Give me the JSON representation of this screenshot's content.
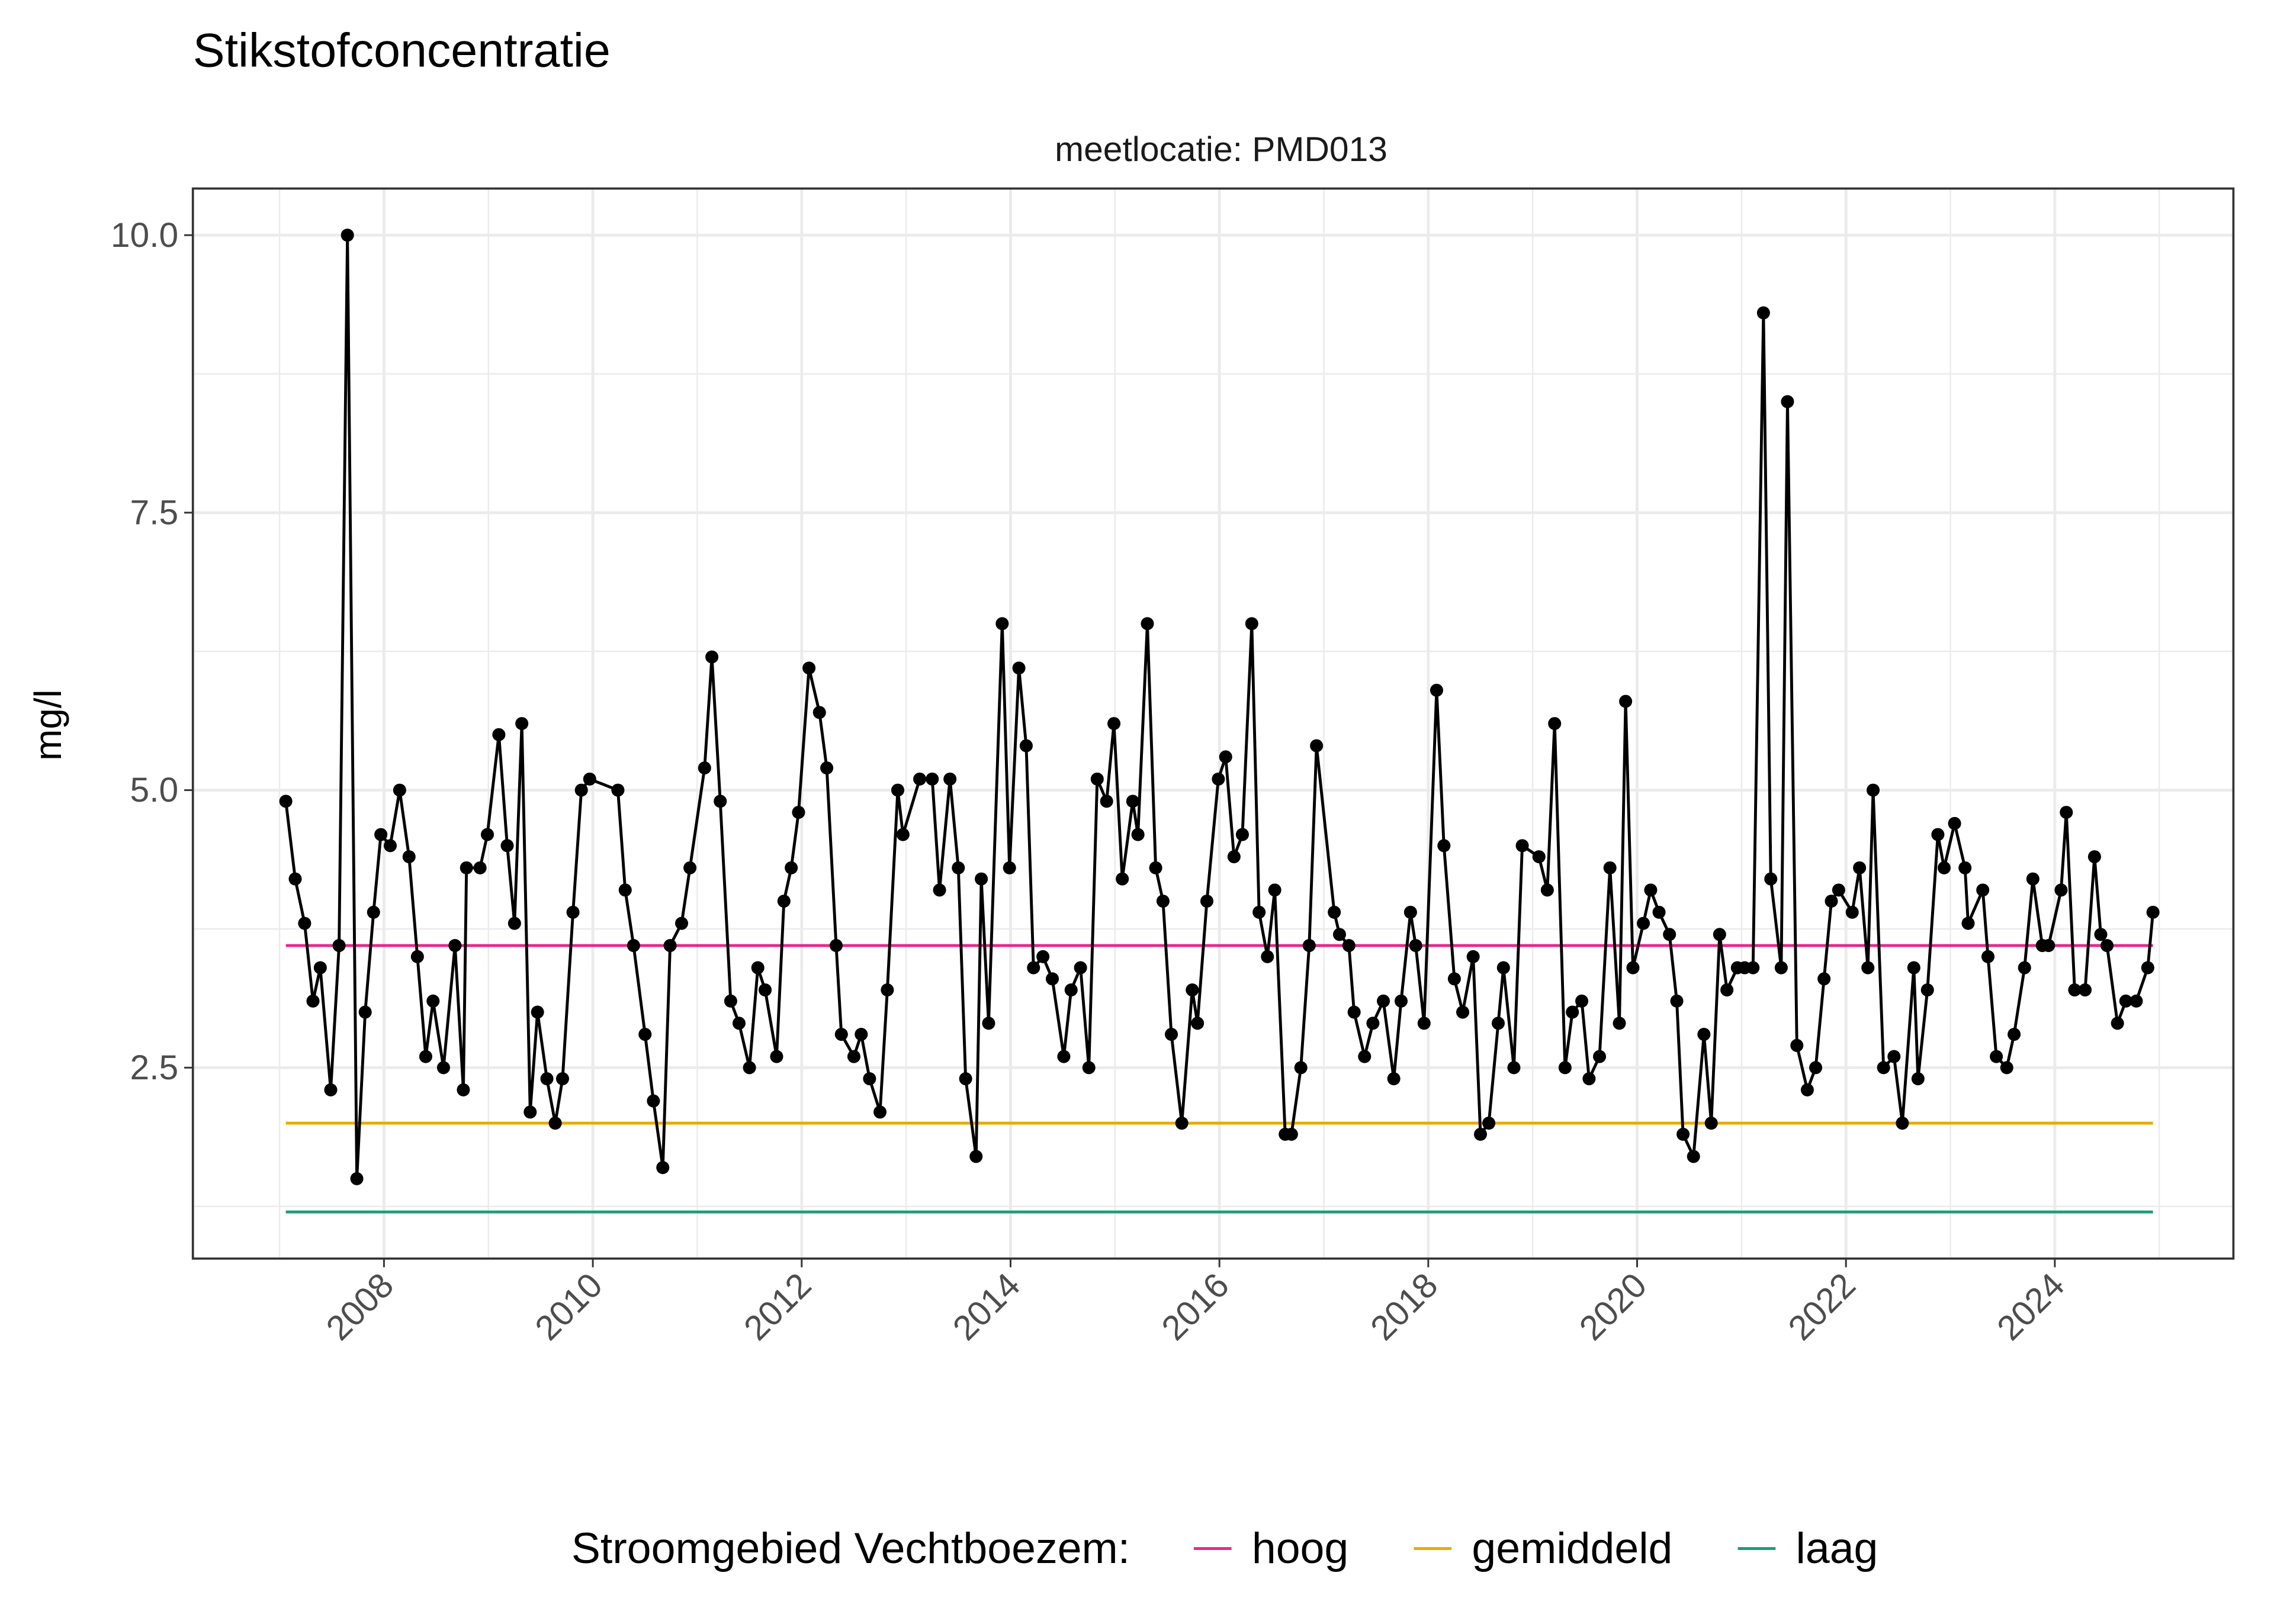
{
  "chart_data": {
    "type": "line",
    "title": "Stikstofconcentratie",
    "subtitle": "meetlocatie: PMD013",
    "ylabel": "mg/l",
    "legend_title": "Stroomgebied Vechtboezem:",
    "legend": "bottom",
    "grid": true,
    "xlim": [
      2006.17,
      2025.71
    ],
    "xticks": [
      2008,
      2010,
      2012,
      2014,
      2016,
      2018,
      2020,
      2022,
      2024
    ],
    "minor_xticks": [
      2007,
      2009,
      2011,
      2013,
      2015,
      2017,
      2019,
      2021,
      2023,
      2025
    ],
    "ylim": [
      0.78,
      10.42
    ],
    "yticks": [
      2.5,
      {
        "value": 5,
        "label": "5.0"
      },
      7.5,
      {
        "value": 10,
        "label": "10.0"
      }
    ],
    "minor_yticks": [
      1.25,
      3.75,
      6.25,
      8.75
    ],
    "series": [
      {
        "color": "#000000",
        "x": [
          2007.06,
          2007.15,
          2007.24,
          2007.32,
          2007.39,
          2007.49,
          2007.57,
          2007.65,
          2007.74,
          2007.82,
          2007.9,
          2007.97,
          2008.06,
          2008.15,
          2008.24,
          2008.32,
          2008.4,
          2008.47,
          2008.57,
          2008.68,
          2008.76,
          2008.79,
          2008.92,
          2008.99,
          2009.1,
          2009.18,
          2009.25,
          2009.32,
          2009.4,
          2009.47,
          2009.56,
          2009.64,
          2009.71,
          2009.81,
          2009.89,
          2009.97,
          2010.24,
          2010.31,
          2010.39,
          2010.5,
          2010.58,
          2010.67,
          2010.74,
          2010.85,
          2010.93,
          2011.07,
          2011.14,
          2011.22,
          2011.32,
          2011.4,
          2011.5,
          2011.58,
          2011.65,
          2011.76,
          2011.83,
          2011.9,
          2011.97,
          2012.07,
          2012.17,
          2012.24,
          2012.33,
          2012.38,
          2012.5,
          2012.57,
          2012.65,
          2012.75,
          2012.82,
          2012.92,
          2012.97,
          2013.13,
          2013.25,
          2013.32,
          2013.42,
          2013.5,
          2013.57,
          2013.67,
          2013.72,
          2013.79,
          2013.92,
          2013.99,
          2014.08,
          2014.15,
          2014.22,
          2014.31,
          2014.4,
          2014.51,
          2014.58,
          2014.67,
          2014.75,
          2014.83,
          2014.92,
          2014.99,
          2015.07,
          2015.17,
          2015.22,
          2015.31,
          2015.39,
          2015.46,
          2015.54,
          2015.64,
          2015.74,
          2015.79,
          2015.88,
          2015.99,
          2016.06,
          2016.14,
          2016.22,
          2016.31,
          2016.38,
          2016.46,
          2016.53,
          2016.63,
          2016.69,
          2016.78,
          2016.86,
          2016.93,
          2017.1,
          2017.15,
          2017.24,
          2017.29,
          2017.39,
          2017.47,
          2017.57,
          2017.67,
          2017.74,
          2017.83,
          2017.88,
          2017.96,
          2018.08,
          2018.15,
          2018.25,
          2018.33,
          2018.43,
          2018.5,
          2018.58,
          2018.67,
          2018.72,
          2018.82,
          2018.9,
          2019.06,
          2019.14,
          2019.21,
          2019.31,
          2019.38,
          2019.47,
          2019.54,
          2019.64,
          2019.74,
          2019.83,
          2019.89,
          2019.96,
          2020.06,
          2020.13,
          2020.21,
          2020.31,
          2020.38,
          2020.44,
          2020.54,
          2020.64,
          2020.71,
          2020.79,
          2020.86,
          2020.96,
          2021.03,
          2021.11,
          2021.21,
          2021.28,
          2021.38,
          2021.44,
          2021.53,
          2021.63,
          2021.71,
          2021.79,
          2021.86,
          2021.93,
          2022.06,
          2022.13,
          2022.21,
          2022.26,
          2022.36,
          2022.46,
          2022.54,
          2022.65,
          2022.69,
          2022.78,
          2022.88,
          2022.94,
          2023.04,
          2023.14,
          2023.17,
          2023.31,
          2023.36,
          2023.44,
          2023.54,
          2023.61,
          2023.71,
          2023.79,
          2023.88,
          2023.94,
          2024.06,
          2024.11,
          2024.19,
          2024.29,
          2024.38,
          2024.44,
          2024.5,
          2024.6,
          2024.68,
          2024.78,
          2024.89,
          2024.94
        ],
        "values": [
          4.9,
          4.2,
          3.8,
          3.1,
          3.4,
          2.3,
          3.6,
          10.0,
          1.5,
          3.0,
          3.9,
          4.6,
          4.5,
          5.0,
          4.4,
          3.5,
          2.6,
          3.1,
          2.5,
          3.6,
          2.3,
          4.3,
          4.3,
          4.6,
          5.5,
          4.5,
          3.8,
          5.6,
          2.1,
          3.0,
          2.4,
          2.0,
          2.4,
          3.9,
          5.0,
          5.1,
          5.0,
          4.1,
          3.6,
          2.8,
          2.2,
          1.6,
          3.6,
          3.8,
          4.3,
          5.2,
          6.2,
          4.9,
          3.1,
          2.9,
          2.5,
          3.4,
          3.2,
          2.6,
          4.0,
          4.3,
          4.8,
          6.1,
          5.7,
          5.2,
          3.6,
          2.8,
          2.6,
          2.8,
          2.4,
          2.1,
          3.2,
          5.0,
          4.6,
          5.1,
          5.1,
          4.1,
          5.1,
          4.3,
          2.4,
          1.7,
          4.2,
          2.9,
          6.5,
          4.3,
          6.1,
          5.4,
          3.4,
          3.5,
          3.3,
          2.6,
          3.2,
          3.4,
          2.5,
          5.1,
          4.9,
          5.6,
          4.2,
          4.9,
          4.6,
          6.5,
          4.3,
          4.0,
          2.8,
          2.0,
          3.2,
          2.9,
          4.0,
          5.1,
          5.3,
          4.4,
          4.6,
          6.5,
          3.9,
          3.5,
          4.1,
          1.9,
          1.9,
          2.5,
          3.6,
          5.4,
          3.9,
          3.7,
          3.6,
          3.0,
          2.6,
          2.9,
          3.1,
          2.4,
          3.1,
          3.9,
          3.6,
          2.9,
          5.9,
          4.5,
          3.3,
          3.0,
          3.5,
          1.9,
          2.0,
          2.9,
          3.4,
          2.5,
          4.5,
          4.4,
          4.1,
          5.6,
          2.5,
          3.0,
          3.1,
          2.4,
          2.6,
          4.3,
          2.9,
          5.8,
          3.4,
          3.8,
          4.1,
          3.9,
          3.7,
          3.1,
          1.9,
          1.7,
          2.8,
          2.0,
          3.7,
          3.2,
          3.4,
          3.4,
          3.4,
          9.3,
          4.2,
          3.4,
          8.5,
          2.7,
          2.3,
          2.5,
          3.3,
          4.0,
          4.1,
          3.9,
          4.3,
          3.4,
          5.0,
          2.5,
          2.6,
          2.0,
          3.4,
          2.4,
          3.2,
          4.6,
          4.3,
          4.7,
          4.3,
          3.8,
          4.1,
          3.5,
          2.6,
          2.5,
          2.8,
          3.4,
          4.2,
          3.6,
          3.6,
          4.1,
          4.8,
          3.2,
          3.2,
          4.4,
          3.7,
          3.6,
          2.9,
          3.1,
          3.1,
          3.4,
          3.9
        ]
      }
    ],
    "reference_lines": [
      {
        "name": "hoog",
        "color": "#e7298a",
        "value": 3.6
      },
      {
        "name": "gemiddeld",
        "color": "#e6ab02",
        "value": 2.0
      },
      {
        "name": "laag",
        "color": "#1b9e77",
        "value": 1.2
      }
    ]
  }
}
